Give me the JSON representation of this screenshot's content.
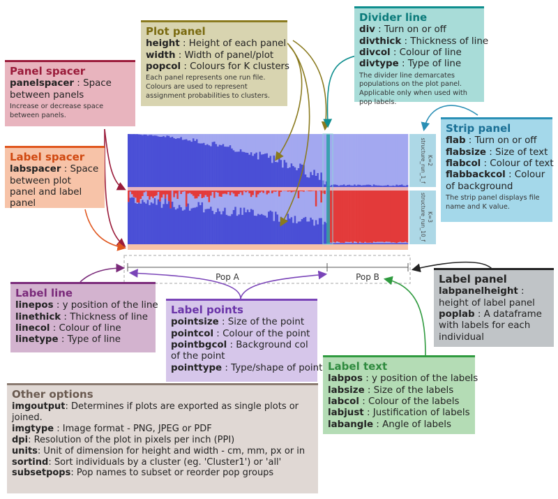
{
  "colors": {
    "cluster1": "#4a4fd6",
    "cluster2": "#a3a8f0",
    "cluster3": "#e33a3a",
    "strip_bg": "#add8e6",
    "divider": "#2fa0a8",
    "panel_spacer_bg": "#e8b4be",
    "label_spacer_bg": "#f7c3a8",
    "plot_panel_bg": "#d8d4b0",
    "divider_box_bg": "#a8dcd8",
    "strip_panel_bg": "#a4d8ea",
    "label_line_bg": "#d3b3cf",
    "label_points_bg": "#d6c6ea",
    "label_panel_bg": "#c0c4c7",
    "label_text_bg": "#b4dcb5",
    "other_options_bg": "#e0d8d4"
  },
  "plot_panel": {
    "title": "Plot panel",
    "items": [
      {
        "key": "height",
        "desc": " : Height of each panel"
      },
      {
        "key": "width",
        "desc": " : Width of panel/plot"
      },
      {
        "key": "popcol",
        "desc": " : Colours for K clusters"
      }
    ],
    "note": "Each panel represents one run file. Colours are used to represent assignment probabilities to clusters."
  },
  "divider_line": {
    "title": "Divider line",
    "items": [
      {
        "key": "div",
        "desc": " : Turn on or off"
      },
      {
        "key": "divthick",
        "desc": " : Thickness of line"
      },
      {
        "key": "divcol",
        "desc": " : Colour of line"
      },
      {
        "key": "divtype",
        "desc": " : Type of line"
      }
    ],
    "note": "The divider line demarcates populations on the plot panel. Applicable only when used with pop labels."
  },
  "panel_spacer": {
    "title": "Panel spacer",
    "item_key": "panelspacer",
    "item_desc": " : Space between panels",
    "note": "Increase or decrease space between panels."
  },
  "label_spacer": {
    "title": "Label spacer",
    "item_key": "labspacer",
    "item_desc": " : Space between plot panel and label panel"
  },
  "strip_panel": {
    "title": "Strip panel",
    "items": [
      {
        "key": "flab",
        "desc": " : Turn on or off"
      },
      {
        "key": "flabsize",
        "desc": " : Size of text"
      },
      {
        "key": "flabcol",
        "desc": " : Colour of text"
      },
      {
        "key": "flabbackcol",
        "desc": " : Colour of background"
      }
    ],
    "note": "The strip panel displays file name and K value."
  },
  "label_line": {
    "title": "Label line",
    "items": [
      {
        "key": "linepos",
        "desc": " : y position of the line"
      },
      {
        "key": "linethick",
        "desc": " : Thickness of line"
      },
      {
        "key": "linecol",
        "desc": " : Colour of line"
      },
      {
        "key": "linetype",
        "desc": " : Type of line"
      }
    ]
  },
  "label_points": {
    "title": "Label points",
    "items": [
      {
        "key": "pointsize",
        "desc": " : Size of the point"
      },
      {
        "key": "pointcol",
        "desc": " : Colour of the point"
      },
      {
        "key": "pointbgcol",
        "desc": " : Background col of the point"
      },
      {
        "key": "pointtype",
        "desc": " : Type/shape of point"
      }
    ]
  },
  "label_panel": {
    "title": "Label panel",
    "items": [
      {
        "key": "labpanelheight",
        "desc": " : height of label panel"
      },
      {
        "key": "poplab",
        "desc": " : A dataframe with labels for each individual"
      }
    ]
  },
  "label_text": {
    "title": "Label text",
    "items": [
      {
        "key": "labpos",
        "desc": " : y position of the labels"
      },
      {
        "key": "labsize",
        "desc": " : Size of the labels"
      },
      {
        "key": "labcol",
        "desc": " : Colour of the labels"
      },
      {
        "key": "labjust",
        "desc": " : Justification of labels"
      },
      {
        "key": "labangle",
        "desc": " : Angle of labels"
      }
    ]
  },
  "other_options": {
    "title": "Other options",
    "items": [
      {
        "key": "imgoutput",
        "desc": ": Determines if plots are exported as single plots or joined."
      },
      {
        "key": "imgtype",
        "desc": " : Image format - PNG, JPEG or PDF"
      },
      {
        "key": "dpi",
        "desc": ": Resolution of the plot in pixels per inch (PPI)"
      },
      {
        "key": "units",
        "desc": ": Unit of dimension for height and width - cm, mm, px or in"
      },
      {
        "key": "sortind",
        "desc": ": Sort individuals by a cluster (eg. 'Cluster1') or 'all'"
      },
      {
        "key": "subsetpops",
        "desc": ": Pop names to subset or reorder pop groups"
      }
    ]
  },
  "strip_labels": [
    {
      "file": "structure_run_1_f",
      "k": "K=2"
    },
    {
      "file": "structure_run_10_f",
      "k": "K=3"
    }
  ],
  "pop_labels": [
    "Pop A",
    "Pop B"
  ]
}
